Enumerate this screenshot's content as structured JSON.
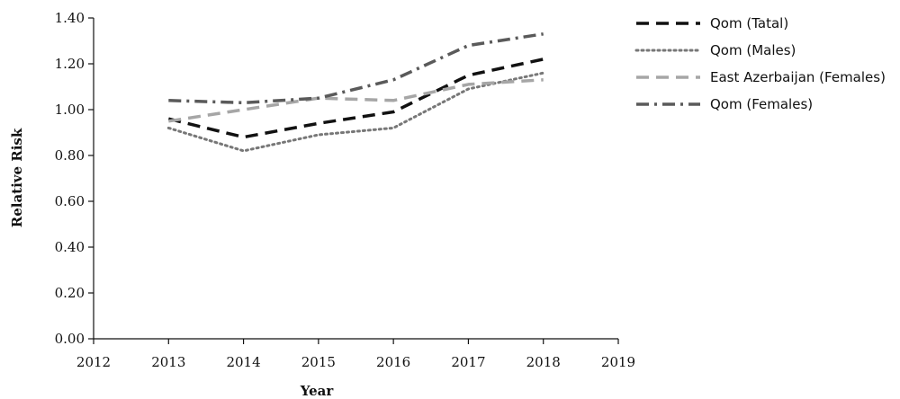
{
  "chart_data": {
    "type": "line",
    "title": "",
    "xlabel": "Year",
    "ylabel": "Relative Risk",
    "x_ticks": [
      "2012",
      "2013",
      "2014",
      "2015",
      "2016",
      "2017",
      "2018",
      "2019"
    ],
    "y_ticks": [
      "0.00",
      "0.20",
      "0.40",
      "0.60",
      "0.80",
      "1.00",
      "1.20",
      "1.40"
    ],
    "xlim": [
      2012,
      2019
    ],
    "ylim": [
      0,
      1.4
    ],
    "grid": false,
    "legend_position": "right",
    "x": [
      2013,
      2014,
      2015,
      2016,
      2017,
      2018
    ],
    "series": [
      {
        "name": "Qom (Tatal)",
        "values": [
          0.96,
          0.88,
          0.94,
          0.99,
          1.15,
          1.22
        ],
        "color": "#111111",
        "dash": "dashed"
      },
      {
        "name": "Qom (Males)",
        "values": [
          0.92,
          0.82,
          0.89,
          0.92,
          1.09,
          1.16
        ],
        "color": "#777777",
        "dash": "dotted"
      },
      {
        "name": "East Azerbaijan (Females)",
        "values": [
          0.95,
          1.0,
          1.05,
          1.04,
          1.11,
          1.13
        ],
        "color": "#a6a6a6",
        "dash": "dashed"
      },
      {
        "name": "Qom (Females)",
        "values": [
          1.04,
          1.03,
          1.05,
          1.13,
          1.28,
          1.33
        ],
        "color": "#5a5a5a",
        "dash": "dashdot"
      }
    ]
  }
}
